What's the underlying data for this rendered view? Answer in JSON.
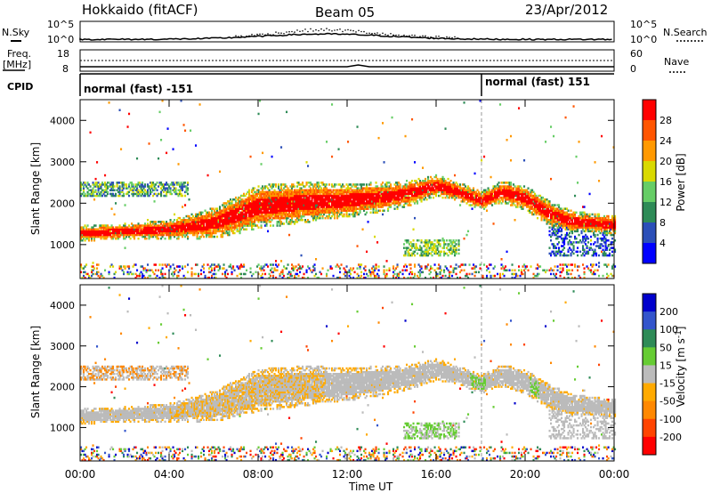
{
  "header": {
    "station": "Hokkaido (fitACF)",
    "beam": "Beam 05",
    "date": "23/Apr/2012"
  },
  "top_panels": {
    "nsky_label": "N.Sky",
    "nsky_ticks": [
      "10^5",
      "10^0"
    ],
    "nsearch_label": "N.Search",
    "nsearch_ticks": [
      "10^5",
      "10^0"
    ],
    "freq_label_1": "Freq.",
    "freq_label_2": "[MHz]",
    "freq_ticks": [
      "18",
      "8"
    ],
    "nave_label": "Nave",
    "nave_ticks": [
      "60",
      "0"
    ],
    "cpid_label": "CPID",
    "cpid_mode_1": "normal (fast) -151",
    "cpid_mode_2": "normal (fast) 151",
    "cpid_change_hour": 18.0
  },
  "x_axis": {
    "label": "Time UT",
    "ticks": [
      "00:00",
      "04:00",
      "08:00",
      "12:00",
      "16:00",
      "20:00",
      "00:00"
    ],
    "hours": [
      0,
      4,
      8,
      12,
      16,
      20,
      24
    ]
  },
  "colors": {
    "power_scale": [
      "#0000ff",
      "#2b4fb8",
      "#2e8b57",
      "#66cd66",
      "#d9d900",
      "#ff9900",
      "#ff5500",
      "#ff0000"
    ],
    "velocity_scale": [
      "#ff0000",
      "#ff4400",
      "#ff8800",
      "#ffaa00",
      "#bbbbbb",
      "#66cc33",
      "#2e8b57",
      "#3355cc",
      "#0000cc"
    ],
    "power_red": "#ff2200",
    "velocity_grey": "#b8b8b8",
    "velocity_orange": "#f0a020",
    "velocity_green": "#55cc33"
  },
  "chart_data": [
    {
      "type": "heatmap",
      "title": "Power",
      "ylabel": "Slant Range [km]",
      "xlabel": "",
      "xlim": [
        0,
        24
      ],
      "ylim": [
        180,
        4500
      ],
      "yticks": [
        "1000",
        "2000",
        "3000",
        "4000"
      ],
      "ytick_values": [
        1000,
        2000,
        3000,
        4000
      ],
      "colorbar": {
        "label": "Power [dB]",
        "ticks": [
          "28",
          "24",
          "20",
          "16",
          "12",
          "8",
          "4"
        ],
        "range": [
          0,
          30
        ]
      },
      "main_echo": {
        "hours": [
          0,
          2,
          4,
          6,
          8,
          10,
          12,
          14,
          15,
          16,
          17,
          18,
          19,
          20,
          21,
          22,
          23,
          24
        ],
        "center_km": [
          1250,
          1300,
          1350,
          1500,
          1900,
          2000,
          2050,
          2150,
          2250,
          2400,
          2250,
          2050,
          2250,
          2100,
          1750,
          1550,
          1500,
          1450
        ],
        "width_km": [
          250,
          250,
          300,
          500,
          700,
          650,
          550,
          450,
          400,
          350,
          300,
          300,
          350,
          400,
          400,
          350,
          300,
          300
        ]
      }
    },
    {
      "type": "heatmap",
      "title": "Velocity",
      "ylabel": "Slant Range [km]",
      "xlabel": "Time UT",
      "xlim": [
        0,
        24
      ],
      "ylim": [
        180,
        4500
      ],
      "yticks": [
        "1000",
        "2000",
        "3000",
        "4000"
      ],
      "ytick_values": [
        1000,
        2000,
        3000,
        4000
      ],
      "colorbar": {
        "label": "Velocity [m s^-1]",
        "ticks": [
          "200",
          "100",
          "50",
          "15",
          "-15",
          "-50",
          "-100",
          "-200"
        ],
        "range": [
          -250,
          250
        ]
      }
    }
  ]
}
